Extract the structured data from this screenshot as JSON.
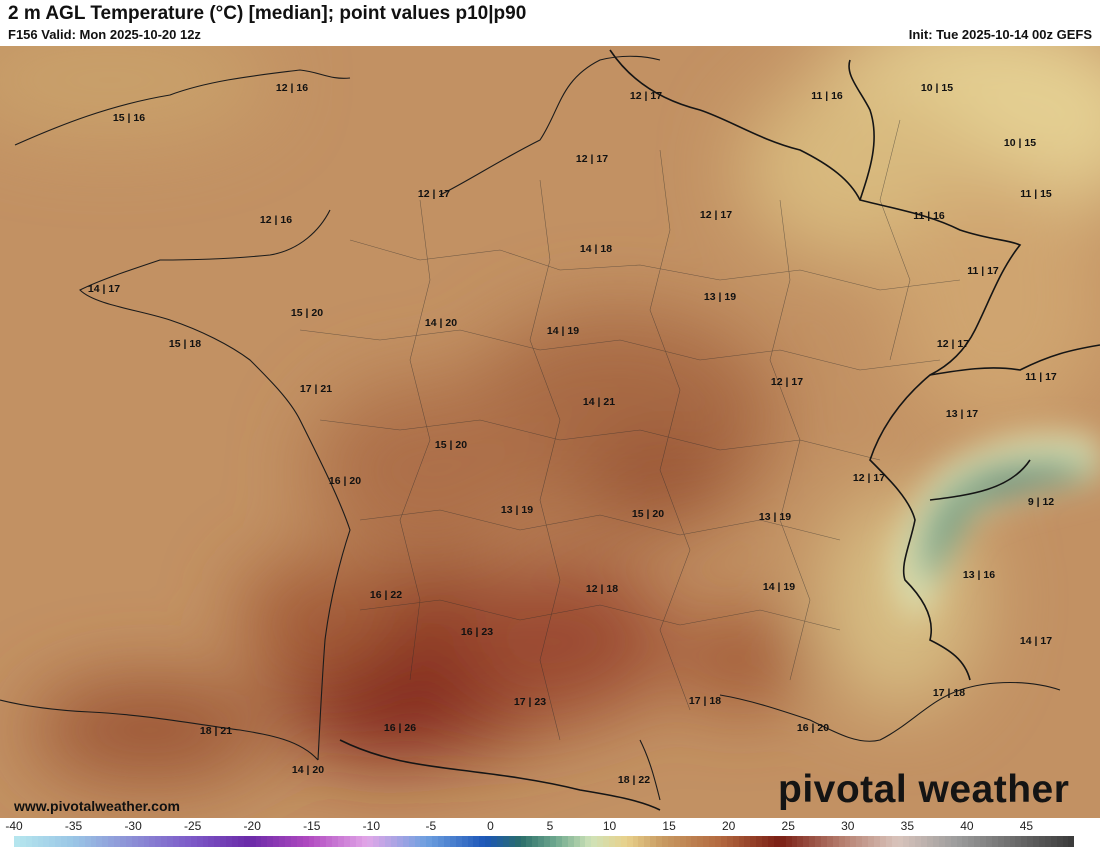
{
  "header": {
    "title": "2 m AGL Temperature (°C) [median]; point values p10|p90",
    "valid": "F156 Valid: Mon 2025-10-20 12z",
    "init": "Init: Tue 2025-10-14 00z GEFS"
  },
  "credit": "www.pivotalweather.com",
  "logo": "pivotal weather",
  "colorbar": {
    "ticks": [
      "-40",
      "-35",
      "-30",
      "-25",
      "-20",
      "-15",
      "-10",
      "-5",
      "0",
      "5",
      "10",
      "15",
      "20",
      "25",
      "30",
      "35",
      "40",
      "45"
    ],
    "range": [
      -40,
      50
    ],
    "stops": [
      {
        "t": -40,
        "c": "#b6e7ee"
      },
      {
        "t": -35,
        "c": "#9ac6e6"
      },
      {
        "t": -30,
        "c": "#8c8fd6"
      },
      {
        "t": -25,
        "c": "#7d5ac8"
      },
      {
        "t": -20,
        "c": "#6a2aa8"
      },
      {
        "t": -15,
        "c": "#b04ac0"
      },
      {
        "t": -10,
        "c": "#e2a7e8"
      },
      {
        "t": -5,
        "c": "#6ea0e0"
      },
      {
        "t": 0,
        "c": "#1c56b8"
      },
      {
        "t": 3,
        "c": "#2a6e6a"
      },
      {
        "t": 6,
        "c": "#6fa98f"
      },
      {
        "t": 9,
        "c": "#cfe3b8"
      },
      {
        "t": 12,
        "c": "#e8d08a"
      },
      {
        "t": 15,
        "c": "#c89a62"
      },
      {
        "t": 20,
        "c": "#b3683f"
      },
      {
        "t": 25,
        "c": "#7a1e14"
      },
      {
        "t": 30,
        "c": "#b37a6a"
      },
      {
        "t": 35,
        "c": "#d9c4bc"
      },
      {
        "t": 40,
        "c": "#9c9c9c"
      },
      {
        "t": 45,
        "c": "#6a6a6a"
      },
      {
        "t": 50,
        "c": "#3a3a3a"
      }
    ]
  },
  "labels": [
    "12 | 16",
    "15 | 16",
    "12 | 17",
    "11 | 16",
    "10 | 15",
    "10 | 15",
    "12 | 17",
    "12 | 17",
    "11 | 15",
    "12 | 16",
    "12 | 17",
    "11 | 16",
    "14 | 18",
    "11 | 17",
    "14 | 17",
    "13 | 19",
    "15 | 20",
    "14 | 20",
    "14 | 19",
    "15 | 18",
    "12 | 17",
    "11 | 17",
    "17 | 21",
    "12 | 17",
    "14 | 21",
    "13 | 17",
    "15 | 20",
    "16 | 20",
    "12 | 17",
    "13 | 19",
    "15 | 20",
    "13 | 19",
    "9 | 12",
    "12 | 18",
    "14 | 19",
    "13 | 16",
    "16 | 22",
    "16 | 23",
    "14 | 17",
    "17 | 23",
    "17 | 18",
    "17 | 18",
    "18 | 21",
    "16 | 26",
    "16 | 20",
    "14 | 20",
    "18 | 22"
  ]
}
